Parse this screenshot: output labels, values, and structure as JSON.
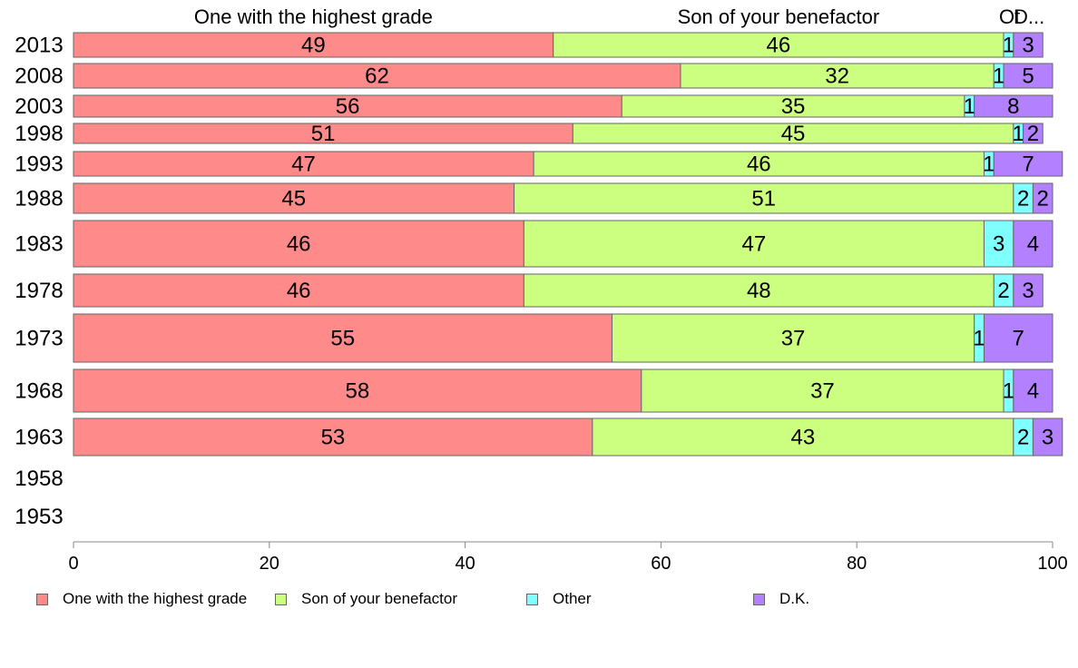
{
  "chart_data": {
    "type": "bar",
    "orientation": "horizontal-stacked-100",
    "categories": [
      "2013",
      "2008",
      "2003",
      "1998",
      "1993",
      "1988",
      "1983",
      "1978",
      "1973",
      "1968",
      "1963",
      "1958",
      "1953"
    ],
    "series": [
      {
        "name": "One with the highest grade",
        "header": "One with the highest grade",
        "color": "#ff8a8a",
        "values": [
          49,
          62,
          56,
          51,
          47,
          45,
          46,
          46,
          55,
          58,
          53,
          null,
          null
        ]
      },
      {
        "name": "Son of your benefactor",
        "header": "Son of your benefactor",
        "color": "#ccff80",
        "values": [
          46,
          32,
          35,
          45,
          46,
          51,
          47,
          48,
          37,
          37,
          43,
          null,
          null
        ]
      },
      {
        "name": "Other",
        "header": "Ot",
        "color": "#80ffff",
        "values": [
          1,
          1,
          1,
          1,
          1,
          2,
          3,
          2,
          1,
          1,
          2,
          null,
          null
        ]
      },
      {
        "name": "D.K.",
        "header": "D...",
        "color": "#b380ff",
        "values": [
          3,
          5,
          8,
          2,
          7,
          2,
          4,
          3,
          7,
          4,
          3,
          null,
          null
        ]
      }
    ],
    "xlim": [
      0,
      100
    ],
    "xticks": [
      0,
      20,
      40,
      60,
      80,
      100
    ],
    "xlabel": "",
    "ylabel": "",
    "legend_position": "bottom",
    "grid": false
  }
}
